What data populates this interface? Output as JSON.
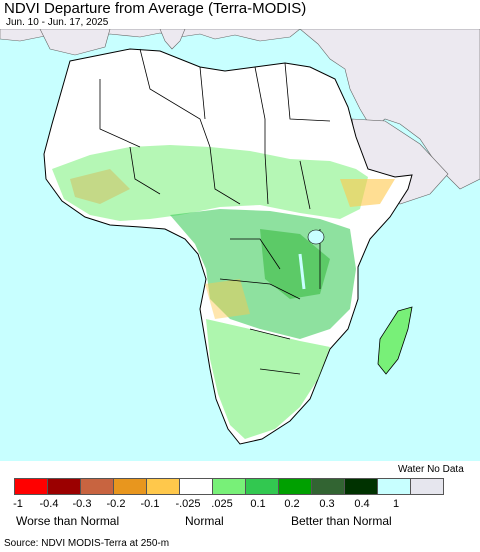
{
  "title": "NDVI Departure from Average (Terra-MODIS)",
  "subtitle": "Jun. 10 - Jun. 17, 2025",
  "legend": {
    "no_data_label": "Water No Data",
    "colors": [
      "#ff0000",
      "#9b0000",
      "#c86440",
      "#e8961e",
      "#ffc84b",
      "#ffffff",
      "#78f078",
      "#32c850",
      "#00a000",
      "#326432",
      "#003200",
      "#c8ffff",
      "#e6e6ee"
    ],
    "ticks": [
      "-1",
      "-0.4",
      "-0.3",
      "-0.2",
      "-0.1",
      "-.025",
      ".025",
      "0.1",
      "0.2",
      "0.3",
      "0.4",
      "1"
    ],
    "categories": {
      "worse": "Worse than Normal",
      "normal": "Normal",
      "better": "Better than Normal"
    }
  },
  "source": "Source: NDVI MODIS-Terra at 250-m",
  "map": {
    "ocean_color": "#c8ffff",
    "other_land_color": "#ece9f0",
    "africa_base_color": "#ffffff"
  }
}
